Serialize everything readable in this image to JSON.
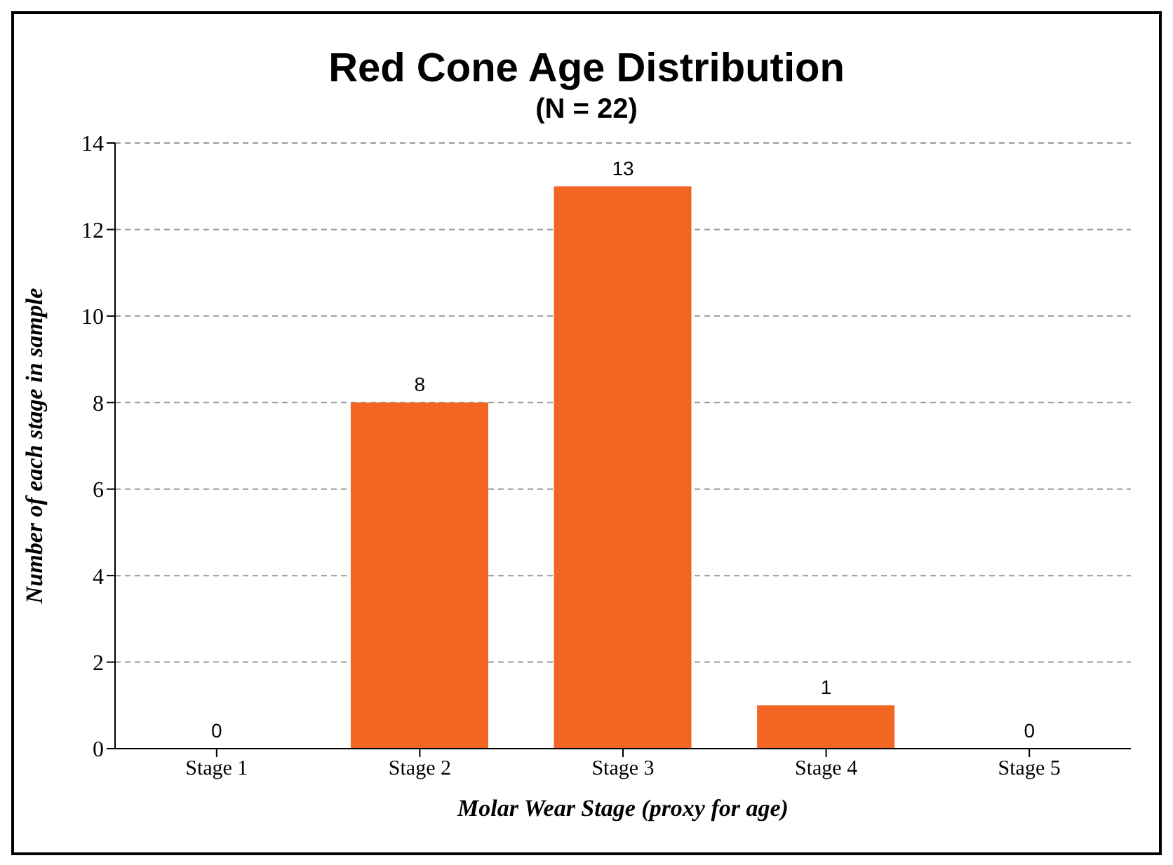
{
  "chart_data": {
    "type": "bar",
    "title": "Red Cone Age Distribution",
    "subtitle": "(N = 22)",
    "xlabel": "Molar Wear Stage (proxy for age)",
    "ylabel": "Number of each stage in sample",
    "categories": [
      "Stage 1",
      "Stage 2",
      "Stage 3",
      "Stage 4",
      "Stage 5"
    ],
    "values": [
      0,
      8,
      13,
      1,
      0
    ],
    "color": "#f26522",
    "ylim": [
      0,
      14
    ],
    "yticks": [
      0,
      2,
      4,
      6,
      8,
      10,
      12,
      14
    ],
    "grid": "y",
    "data_labels": true
  }
}
